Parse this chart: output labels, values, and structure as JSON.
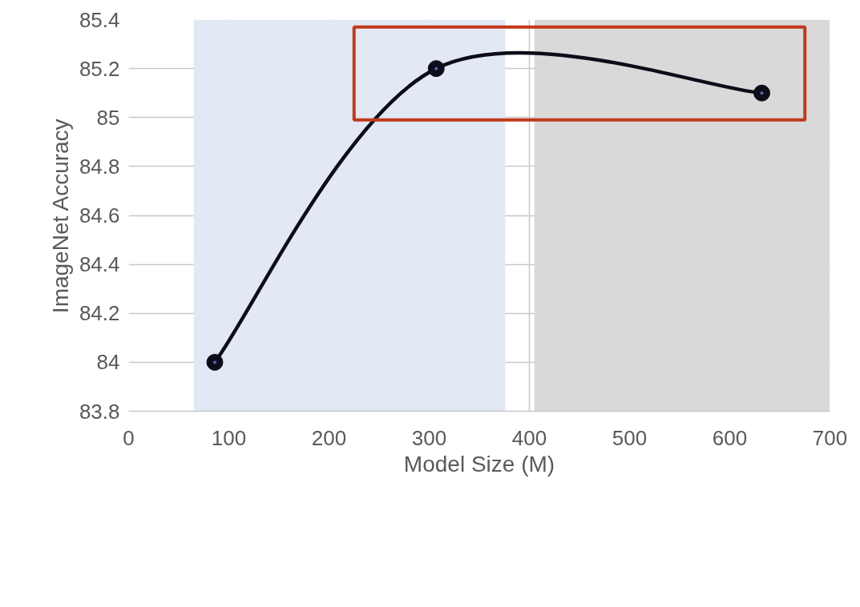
{
  "chart_data": {
    "type": "line",
    "xlabel": "Model Size (M)",
    "ylabel": "ImageNet Accuracy",
    "x": [
      86,
      307,
      632
    ],
    "series": [
      {
        "color": "#0d0d1a",
        "values": [
          84.0,
          85.2,
          85.1
        ]
      }
    ],
    "xlim": [
      0,
      700
    ],
    "xticks": [
      0,
      100,
      200,
      300,
      400,
      500,
      600,
      700
    ],
    "ylim": [
      83.8,
      85.4
    ],
    "yticks": [
      83.8,
      84,
      84.2,
      84.4,
      84.6,
      84.8,
      85,
      85.2,
      85.4
    ],
    "bands": [
      {
        "axis": "x",
        "from": 65,
        "to": 376,
        "color": "#e2e8f4"
      },
      {
        "axis": "x",
        "from": 405,
        "to": 700,
        "color": "#d9d9d9"
      }
    ],
    "grid": true,
    "marker": "circle",
    "line_style": "solid"
  }
}
